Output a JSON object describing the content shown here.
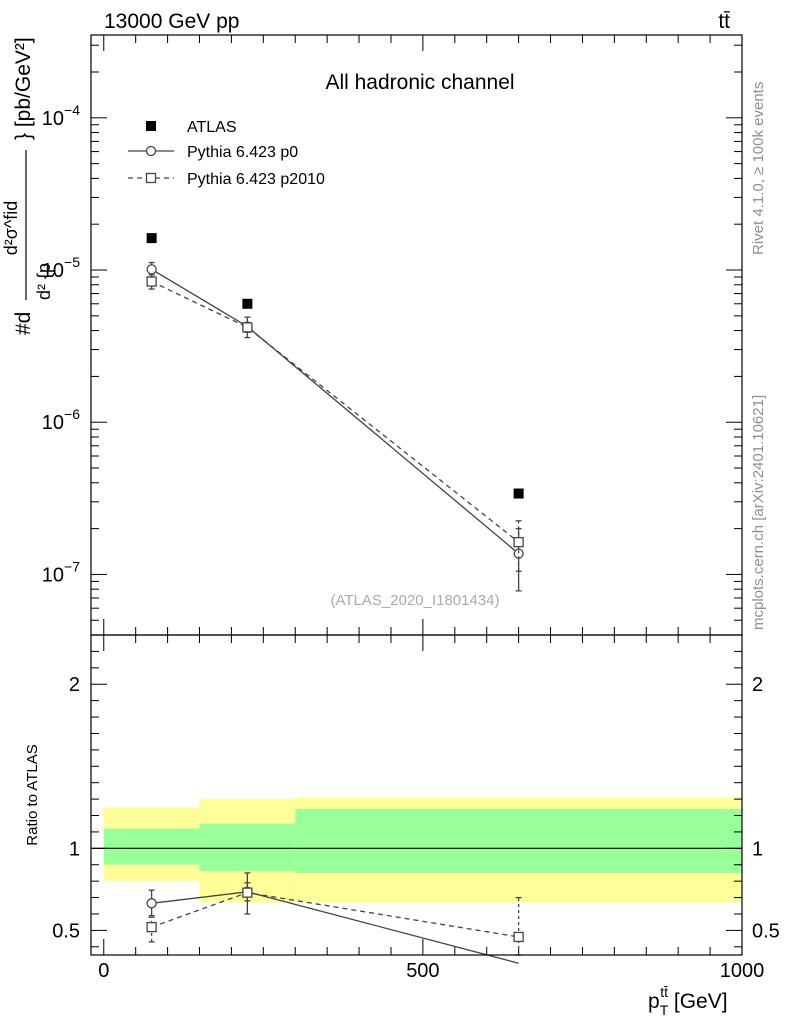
{
  "header": {
    "left": "13000 GeV pp",
    "right": "tt̄"
  },
  "side_labels": {
    "rivet": "Rivet 4.1.0, ≥ 100k events",
    "mcplots": "mcplots.cern.ch [arXiv:2401.10621]"
  },
  "chart_data": [
    {
      "type": "scatter",
      "title": "All hadronic channel",
      "watermark": "(ATLAS_2020_I1801434)",
      "ylabel": "#d d²σ^{fid} / d² {p_T^{tt̄} #cdot m^{tt̄}} [pb/GeV²]",
      "ylabel_parts": {
        "main": "#d",
        "numerator": "d²σ^fid",
        "denominator": "d² {p",
        "tail": "} [pb/GeV²]"
      },
      "yscale": "log",
      "ylim": [
        4e-08,
        0.00035
      ],
      "xlim": [
        -20,
        1000
      ],
      "y_ticks": [
        {
          "value": 1e-07,
          "base": "10",
          "exp": "−7"
        },
        {
          "value": 1e-06,
          "base": "10",
          "exp": "−6"
        },
        {
          "value": 1e-05,
          "base": "10",
          "exp": "−5"
        },
        {
          "value": 0.0001,
          "base": "10",
          "exp": "−4"
        }
      ],
      "legend_position": "top-left",
      "series": [
        {
          "name": "ATLAS",
          "marker": "filled-square",
          "line": "none",
          "x": [
            75,
            225,
            650
          ],
          "y": [
            1.62e-05,
            6e-06,
            3.4e-07
          ],
          "y_lo": [
            1.62e-05,
            6e-06,
            3.4e-07
          ],
          "y_hi": [
            1.62e-05,
            6e-06,
            3.4e-07
          ]
        },
        {
          "name": "Pythia 6.423 p0",
          "marker": "open-circle",
          "line": "solid",
          "x": [
            75,
            225,
            650
          ],
          "y": [
            1.01e-05,
            4.25e-06,
            1.37e-07
          ],
          "y_lo": [
            9e-06,
            3.6e-06,
            7.8e-08
          ],
          "y_hi": [
            1.12e-05,
            4.9e-06,
            2e-07
          ]
        },
        {
          "name": "Pythia 6.423 p2010",
          "marker": "open-square",
          "line": "dashed",
          "x": [
            75,
            225,
            650
          ],
          "y": [
            8.4e-06,
            4.2e-06,
            1.63e-07
          ],
          "y_lo": [
            7.5e-06,
            3.9e-06,
            1.05e-07
          ],
          "y_hi": [
            9.3e-06,
            4.5e-06,
            2.25e-07
          ]
        }
      ]
    },
    {
      "type": "scatter",
      "ylabel": "Ratio to ATLAS",
      "xlabel": "p_T^{tt̄} [GeV]",
      "xlabel_parts": {
        "base": "p",
        "sub": "T",
        "sup": "tt̄",
        "unit": " [GeV]"
      },
      "ylim": [
        0.35,
        2.3
      ],
      "xlim": [
        -20,
        1000
      ],
      "x_ticks": [
        {
          "value": 0,
          "label": "0"
        },
        {
          "value": 500,
          "label": "500"
        },
        {
          "value": 1000,
          "label": "1000"
        }
      ],
      "y_ticks": [
        {
          "value": 0.5,
          "label": "0.5"
        },
        {
          "value": 1,
          "label": "1"
        },
        {
          "value": 2,
          "label": "2"
        }
      ],
      "bands": [
        {
          "x0": 0,
          "x1": 150,
          "yellow": [
            0.8,
            1.25
          ],
          "green": [
            0.9,
            1.12
          ]
        },
        {
          "x0": 150,
          "x1": 300,
          "yellow": [
            0.67,
            1.3
          ],
          "green": [
            0.86,
            1.15
          ]
        },
        {
          "x0": 300,
          "x1": 1000,
          "yellow": [
            0.67,
            1.31
          ],
          "green": [
            0.85,
            1.24
          ]
        }
      ],
      "series": [
        {
          "name": "Pythia 6.423 p0",
          "marker": "open-circle",
          "line": "solid",
          "x": [
            75,
            225,
            650
          ],
          "y": [
            0.665,
            0.735,
            0.3
          ],
          "y_lo": [
            0.59,
            0.6,
            0.3
          ],
          "y_hi": [
            0.745,
            0.85,
            0.3
          ]
        },
        {
          "name": "Pythia 6.423 p2010",
          "marker": "open-square",
          "line": "dashed",
          "x": [
            75,
            225,
            650
          ],
          "y": [
            0.52,
            0.73,
            0.46
          ],
          "y_lo": [
            0.43,
            0.68,
            0.3
          ],
          "y_hi": [
            0.58,
            0.79,
            0.7
          ]
        }
      ]
    }
  ],
  "colors": {
    "band_yellow": "#ffff99",
    "band_green": "#99ff99",
    "mc": "#444444",
    "data": "#000000"
  }
}
